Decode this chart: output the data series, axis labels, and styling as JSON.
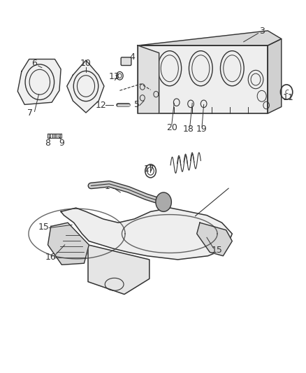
{
  "fig_width": 4.38,
  "fig_height": 5.33,
  "dpi": 100,
  "bg_color": "#ffffff",
  "line_color": "#333333",
  "label_fontsize": 9
}
